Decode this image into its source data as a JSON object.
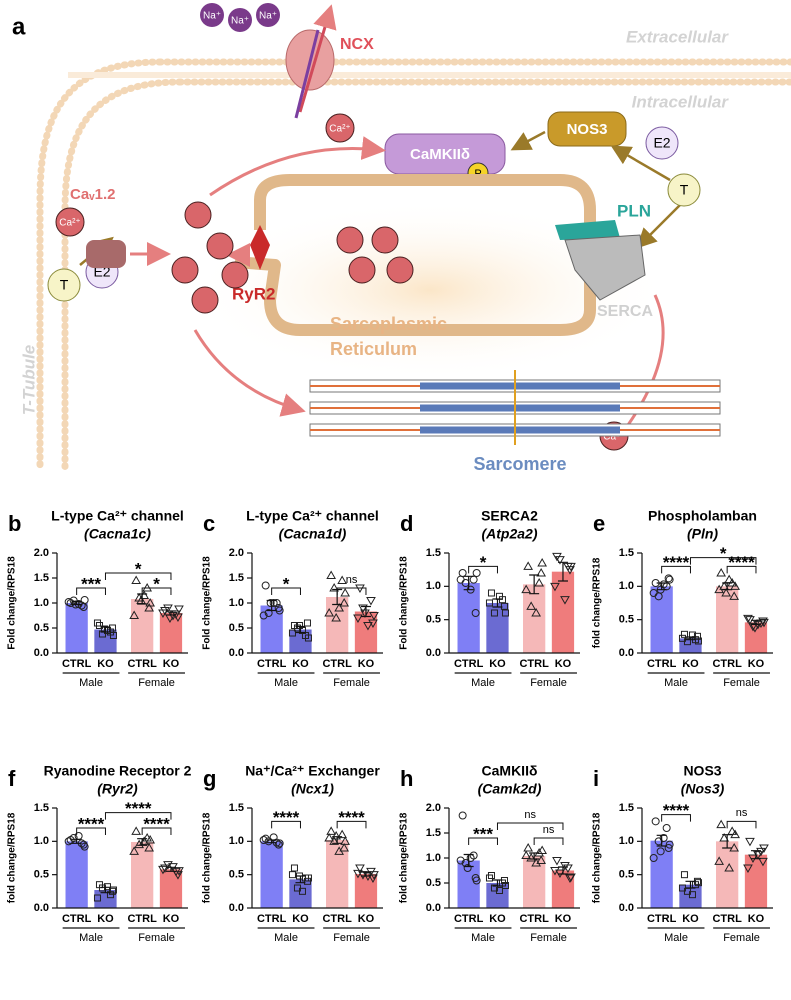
{
  "diagram": {
    "panel": "a",
    "extracellular": "Extracellular",
    "intracellular": "Intracellular",
    "ncx": "NCX",
    "na": [
      "Na⁺",
      "Na⁺",
      "Na⁺"
    ],
    "ca": [
      "Ca²⁺",
      "Ca²⁺",
      "Ca²⁺"
    ],
    "camk": "CaMKIIδ",
    "p": "P",
    "nos3": "NOS3",
    "e2": [
      "E2",
      "E2"
    ],
    "t": [
      "T",
      "T"
    ],
    "cav": "Caᵥ1.2",
    "ryr2": "RyR2",
    "pln": "PLN",
    "serca": "SERCA",
    "sr": [
      "Sarcoplasmic",
      "Reticulum"
    ],
    "ttubule": "T-Tubule",
    "sarcomere": "Sarcomere"
  },
  "chart_data": [
    {
      "type": "bar",
      "panel": "b",
      "title": "L-type Ca²⁺ channel",
      "subtitle": "(Cacna1c)",
      "ylabel": "Fold change/RPS18",
      "categories": [
        "CTRL",
        "KO",
        "CTRL",
        "KO"
      ],
      "groups": [
        "Male",
        "Female"
      ],
      "colors": [
        "#7f7ff5",
        "#6b6bd2",
        "#f5b8b8",
        "#ef7c7c"
      ],
      "markers": [
        "circle",
        "square",
        "triangle",
        "triangle-down"
      ],
      "values": [
        1.0,
        0.47,
        1.08,
        0.8
      ],
      "errors": [
        0.03,
        0.05,
        0.1,
        0.04
      ],
      "points": [
        [
          1.0,
          0.95,
          1.05,
          0.92,
          1.02,
          0.98,
          1.06,
          0.97
        ],
        [
          0.55,
          0.42,
          0.38,
          0.5,
          0.6,
          0.45,
          0.35,
          0.48
        ],
        [
          1.45,
          1.3,
          1.1,
          0.9,
          0.75,
          1.15,
          1.0,
          1.05
        ],
        [
          0.85,
          0.78,
          0.9,
          0.72,
          0.8,
          0.75,
          0.88,
          0.7
        ]
      ],
      "ylim": [
        0,
        2
      ],
      "yticks": [
        {
          "value": 0,
          "label": "0.0"
        },
        0.5,
        {
          "value": 1,
          "label": "1.0"
        },
        1.5,
        {
          "value": 2,
          "label": "2.0"
        }
      ],
      "significance": [
        {
          "bars": [
            0,
            1
          ],
          "y": 1.3,
          "label": "***"
        },
        {
          "bars": [
            1,
            3
          ],
          "y": 1.6,
          "label": "*"
        },
        {
          "bars": [
            2,
            3
          ],
          "y": 1.3,
          "label": "*"
        }
      ]
    },
    {
      "type": "bar",
      "panel": "c",
      "title": "L-type Ca²⁺ channel",
      "subtitle": "(Cacna1d)",
      "ylabel": "Fold change/RPS18",
      "categories": [
        "CTRL",
        "KO",
        "CTRL",
        "KO"
      ],
      "groups": [
        "Male",
        "Female"
      ],
      "colors": [
        "#7f7ff5",
        "#6b6bd2",
        "#f5b8b8",
        "#ef7c7c"
      ],
      "markers": [
        "circle",
        "square",
        "triangle",
        "triangle-down"
      ],
      "values": [
        0.95,
        0.47,
        1.12,
        0.83
      ],
      "errors": [
        0.1,
        0.06,
        0.15,
        0.1
      ],
      "points": [
        [
          1.35,
          1.0,
          0.8,
          0.9,
          0.75,
          1.0,
          0.85,
          1.0
        ],
        [
          0.55,
          0.35,
          0.5,
          0.6,
          0.4,
          0.45,
          0.3,
          0.55
        ],
        [
          1.55,
          1.45,
          1.3,
          1.0,
          0.8,
          0.9,
          1.2,
          0.7
        ],
        [
          1.3,
          1.05,
          0.9,
          0.6,
          0.7,
          0.55,
          0.75,
          0.8
        ]
      ],
      "ylim": [
        0,
        2
      ],
      "yticks": [
        {
          "value": 0,
          "label": "0.0"
        },
        0.5,
        {
          "value": 1,
          "label": "1.0"
        },
        1.5,
        {
          "value": 2,
          "label": "2.0"
        }
      ],
      "significance": [
        {
          "bars": [
            0,
            1
          ],
          "y": 1.3,
          "label": "*"
        },
        {
          "bars": [
            2,
            3
          ],
          "y": 1.3,
          "label": "ns"
        }
      ]
    },
    {
      "type": "bar",
      "panel": "d",
      "title": "SERCA2",
      "subtitle": "(Atp2a2)",
      "ylabel": "Fold change/RPS18",
      "categories": [
        "CTRL",
        "KO",
        "CTRL",
        "KO"
      ],
      "groups": [
        "Male",
        "Female"
      ],
      "colors": [
        "#7f7ff5",
        "#6b6bd2",
        "#f5b8b8",
        "#ef7c7c"
      ],
      "markers": [
        "circle",
        "square",
        "triangle",
        "triangle-down"
      ],
      "values": [
        1.05,
        0.75,
        1.03,
        1.22
      ],
      "errors": [
        0.1,
        0.06,
        0.14,
        0.14
      ],
      "points": [
        [
          1.2,
          1.1,
          1.05,
          0.6,
          1.1,
          0.95,
          1.2
        ],
        [
          0.9,
          0.8,
          0.6,
          0.7,
          0.75,
          0.85,
          0.6
        ],
        [
          1.3,
          1.05,
          0.7,
          1.2,
          0.95,
          0.6,
          1.35
        ],
        [
          1.45,
          1.3,
          1.4,
          1.25,
          1.0,
          0.8,
          1.3
        ]
      ],
      "ylim": [
        0,
        1.5
      ],
      "yticks": [
        {
          "value": 0,
          "label": "0.0"
        },
        0.5,
        {
          "value": 1,
          "label": "1.0"
        },
        1.5
      ],
      "significance": [
        {
          "bars": [
            0,
            1
          ],
          "y": 1.3,
          "label": "*"
        }
      ]
    },
    {
      "type": "bar",
      "panel": "e",
      "title": "Phospholamban",
      "subtitle": "(Pln)",
      "ylabel": "fold change/RPS18",
      "categories": [
        "CTRL",
        "KO",
        "CTRL",
        "KO"
      ],
      "groups": [
        "Male",
        "Female"
      ],
      "colors": [
        "#7f7ff5",
        "#6b6bd2",
        "#f5b8b8",
        "#ef7c7c"
      ],
      "markers": [
        "circle",
        "square",
        "triangle",
        "triangle-down"
      ],
      "values": [
        1.0,
        0.22,
        1.0,
        0.46
      ],
      "errors": [
        0.05,
        0.02,
        0.05,
        0.03
      ],
      "points": [
        [
          1.05,
          1.0,
          0.85,
          1.12,
          0.9,
          1.03,
          1.1,
          0.95
        ],
        [
          0.28,
          0.2,
          0.17,
          0.25,
          0.22,
          0.27,
          0.18
        ],
        [
          1.2,
          1.05,
          1.0,
          0.85,
          0.95,
          1.1,
          1.0,
          0.9
        ],
        [
          0.5,
          0.45,
          0.4,
          0.48,
          0.52,
          0.43,
          0.46,
          0.38
        ]
      ],
      "ylim": [
        0,
        1.5
      ],
      "yticks": [
        {
          "value": 0,
          "label": "0.0"
        },
        0.5,
        {
          "value": 1,
          "label": "1.0"
        },
        1.5
      ],
      "significance": [
        {
          "bars": [
            0,
            1
          ],
          "y": 1.3,
          "label": "****"
        },
        {
          "bars": [
            1,
            3
          ],
          "y": 1.43,
          "label": "*"
        },
        {
          "bars": [
            2,
            3
          ],
          "y": 1.3,
          "label": "****"
        }
      ]
    },
    {
      "type": "bar",
      "panel": "f",
      "title": "Ryanodine Receptor 2",
      "subtitle": "(Ryr2)",
      "ylabel": "fold change/RPS18",
      "categories": [
        "CTRL",
        "KO",
        "CTRL",
        "KO"
      ],
      "groups": [
        "Male",
        "Female"
      ],
      "colors": [
        "#7f7ff5",
        "#6b6bd2",
        "#f5b8b8",
        "#ef7c7c"
      ],
      "markers": [
        "circle",
        "square",
        "triangle",
        "triangle-down"
      ],
      "values": [
        1.0,
        0.27,
        0.99,
        0.58
      ],
      "errors": [
        0.03,
        0.04,
        0.05,
        0.03
      ],
      "points": [
        [
          1.02,
          0.97,
          1.05,
          0.95,
          1.0,
          1.08,
          0.92
        ],
        [
          0.35,
          0.2,
          0.3,
          0.25,
          0.15,
          0.32,
          0.27
        ],
        [
          1.15,
          1.05,
          0.95,
          0.9,
          0.85,
          1.0,
          1.02
        ],
        [
          0.6,
          0.55,
          0.65,
          0.5,
          0.58,
          0.62,
          0.56
        ]
      ],
      "ylim": [
        0,
        1.5
      ],
      "yticks": [
        {
          "value": 0,
          "label": "0.0"
        },
        0.5,
        {
          "value": 1,
          "label": "1.0"
        },
        1.5
      ],
      "significance": [
        {
          "bars": [
            0,
            1
          ],
          "y": 1.2,
          "label": "****"
        },
        {
          "bars": [
            1,
            3
          ],
          "y": 1.43,
          "label": "****"
        },
        {
          "bars": [
            2,
            3
          ],
          "y": 1.2,
          "label": "****"
        }
      ]
    },
    {
      "type": "bar",
      "panel": "g",
      "title": "Na⁺/Ca²⁺ Exchanger",
      "subtitle": "(Ncx1)",
      "ylabel": "fold change/RPS18",
      "categories": [
        "CTRL",
        "KO",
        "CTRL",
        "KO"
      ],
      "groups": [
        "Male",
        "Female"
      ],
      "colors": [
        "#7f7ff5",
        "#6b6bd2",
        "#f5b8b8",
        "#ef7c7c"
      ],
      "markers": [
        "circle",
        "square",
        "triangle",
        "triangle-down"
      ],
      "values": [
        1.0,
        0.43,
        1.02,
        0.51
      ],
      "errors": [
        0.02,
        0.05,
        0.05,
        0.03
      ],
      "points": [
        [
          1.04,
          0.98,
          1.0,
          0.95,
          1.02,
          1.06,
          0.97
        ],
        [
          0.6,
          0.45,
          0.3,
          0.4,
          0.5,
          0.25,
          0.45,
          0.48
        ],
        [
          1.15,
          1.1,
          1.0,
          0.9,
          1.05,
          0.85,
          1.0,
          1.08
        ],
        [
          0.6,
          0.55,
          0.5,
          0.45,
          0.52,
          0.48,
          0.5
        ]
      ],
      "ylim": [
        0,
        1.5
      ],
      "yticks": [
        {
          "value": 0,
          "label": "0.0"
        },
        0.5,
        {
          "value": 1,
          "label": "1.0"
        },
        1.5
      ],
      "significance": [
        {
          "bars": [
            0,
            1
          ],
          "y": 1.3,
          "label": "****"
        },
        {
          "bars": [
            2,
            3
          ],
          "y": 1.3,
          "label": "****"
        }
      ]
    },
    {
      "type": "bar",
      "panel": "h",
      "title": "CaMKIIδ",
      "subtitle": "(Camk2d)",
      "ylabel": "fold change/RPS18",
      "categories": [
        "CTRL",
        "KO",
        "CTRL",
        "KO"
      ],
      "groups": [
        "Male",
        "Female"
      ],
      "colors": [
        "#7f7ff5",
        "#6b6bd2",
        "#f5b8b8",
        "#ef7c7c"
      ],
      "markers": [
        "circle",
        "square",
        "triangle",
        "triangle-down"
      ],
      "values": [
        0.95,
        0.5,
        1.04,
        0.75
      ],
      "errors": [
        0.12,
        0.06,
        0.06,
        0.07
      ],
      "points": [
        [
          1.85,
          1.05,
          0.9,
          0.6,
          0.95,
          1.0,
          0.55,
          0.8
        ],
        [
          0.65,
          0.5,
          0.4,
          0.55,
          0.6,
          0.35,
          0.45
        ],
        [
          1.2,
          1.1,
          1.0,
          0.95,
          1.05,
          0.9,
          1.15
        ],
        [
          0.95,
          0.8,
          0.7,
          0.6,
          0.75,
          0.85,
          0.62
        ]
      ],
      "ylim": [
        0,
        2
      ],
      "yticks": [
        {
          "value": 0,
          "label": "0.0"
        },
        0.5,
        {
          "value": 1,
          "label": "1.0"
        },
        1.5,
        {
          "value": 2,
          "label": "2.0"
        }
      ],
      "significance": [
        {
          "bars": [
            0,
            1
          ],
          "y": 1.4,
          "label": "***"
        },
        {
          "bars": [
            1,
            3
          ],
          "y": 1.7,
          "label": "ns"
        },
        {
          "bars": [
            2,
            3
          ],
          "y": 1.4,
          "label": "ns"
        }
      ]
    },
    {
      "type": "bar",
      "panel": "i",
      "title": "NOS3",
      "subtitle": "(Nos3)",
      "ylabel": "fold change/RPS18",
      "categories": [
        "CTRL",
        "KO",
        "CTRL",
        "KO"
      ],
      "groups": [
        "Male",
        "Female"
      ],
      "colors": [
        "#7f7ff5",
        "#6b6bd2",
        "#f5b8b8",
        "#ef7c7c"
      ],
      "markers": [
        "circle",
        "square",
        "triangle",
        "triangle-down"
      ],
      "values": [
        1.01,
        0.35,
        1.0,
        0.8
      ],
      "errors": [
        0.08,
        0.05,
        0.1,
        0.06
      ],
      "points": [
        [
          1.3,
          1.2,
          1.0,
          0.9,
          0.75,
          1.05,
          0.95,
          0.85
        ],
        [
          0.5,
          0.35,
          0.25,
          0.4,
          0.3,
          0.2,
          0.38
        ],
        [
          1.25,
          1.15,
          1.05,
          0.9,
          0.7,
          0.6,
          1.1
        ],
        [
          1.0,
          0.85,
          0.75,
          0.7,
          0.6,
          0.8,
          0.9
        ]
      ],
      "ylim": [
        0,
        1.5
      ],
      "yticks": [
        {
          "value": 0,
          "label": "0.0"
        },
        0.5,
        {
          "value": 1,
          "label": "1.0"
        },
        1.5
      ],
      "significance": [
        {
          "bars": [
            0,
            1
          ],
          "y": 1.4,
          "label": "****"
        },
        {
          "bars": [
            2,
            3
          ],
          "y": 1.3,
          "label": "ns"
        }
      ]
    }
  ]
}
